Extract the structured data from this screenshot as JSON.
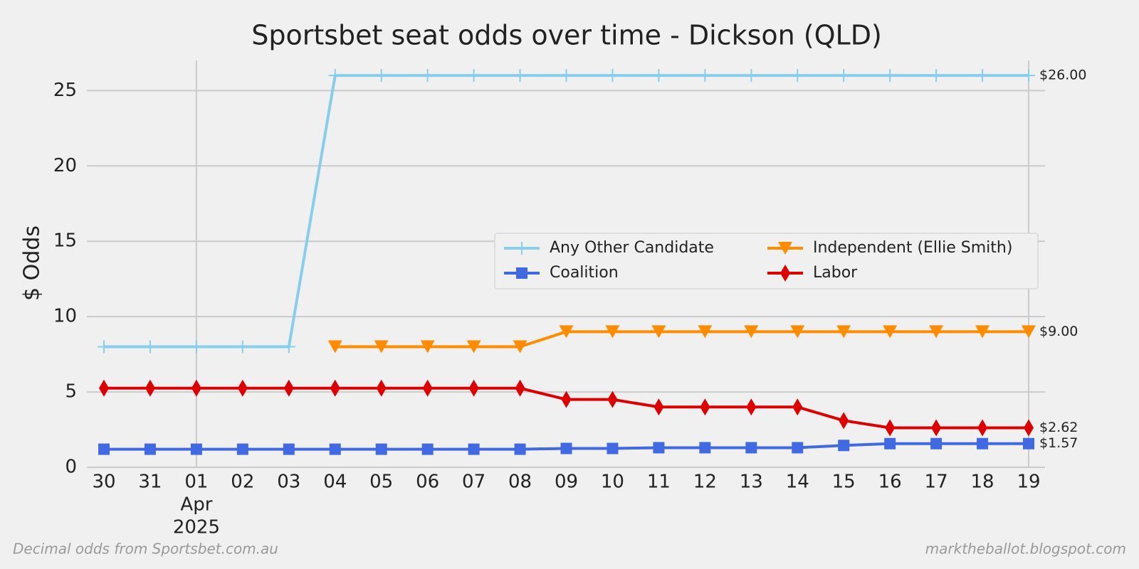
{
  "chart_data": {
    "type": "line",
    "title": "Sportsbet seat odds over time - Dickson (QLD)",
    "ylabel": "$ Odds",
    "categories": [
      "30",
      "31",
      "01",
      "02",
      "03",
      "04",
      "05",
      "06",
      "07",
      "08",
      "09",
      "10",
      "11",
      "12",
      "13",
      "14",
      "15",
      "16",
      "17",
      "18",
      "19"
    ],
    "month": "Apr",
    "year": "2025",
    "xgrid": [
      "01",
      "19"
    ],
    "ylim": [
      0,
      27
    ],
    "yticks": [
      0,
      5,
      10,
      15,
      20,
      25
    ],
    "grid": true,
    "series": [
      {
        "name": "Any Other Candidate",
        "color": "#87ceeb",
        "marker": "plus",
        "values": [
          8,
          8,
          8,
          8,
          8,
          26,
          26,
          26,
          26,
          26,
          26,
          26,
          26,
          26,
          26,
          26,
          26,
          26,
          26,
          26,
          26
        ],
        "end_label": "$26.00"
      },
      {
        "name": "Coalition",
        "color": "#4169e1",
        "marker": "square",
        "values": [
          1.2,
          1.2,
          1.2,
          1.2,
          1.2,
          1.2,
          1.2,
          1.2,
          1.2,
          1.2,
          1.25,
          1.25,
          1.3,
          1.3,
          1.3,
          1.3,
          1.45,
          1.57,
          1.57,
          1.57,
          1.57
        ],
        "end_label": "$1.57"
      },
      {
        "name": "Independent (Ellie Smith)",
        "color": "#ff8c00",
        "marker": "triangle-down",
        "values": [
          null,
          null,
          null,
          null,
          null,
          8,
          8,
          8,
          8,
          8,
          9,
          9,
          9,
          9,
          9,
          9,
          9,
          9,
          9,
          9,
          9
        ],
        "end_label": "$9.00"
      },
      {
        "name": "Labor",
        "color": "#dd0000",
        "marker": "diamond",
        "values": [
          5.25,
          5.25,
          5.25,
          5.25,
          5.25,
          5.25,
          5.25,
          5.25,
          5.25,
          5.25,
          4.5,
          4.5,
          4,
          4,
          4,
          4,
          3.1,
          2.62,
          2.62,
          2.62,
          2.62
        ],
        "end_label": "$2.62"
      }
    ],
    "legend": "center right",
    "footer_left": "Decimal odds from Sportsbet.com.au",
    "footer_right": "marktheballot.blogspot.com"
  }
}
